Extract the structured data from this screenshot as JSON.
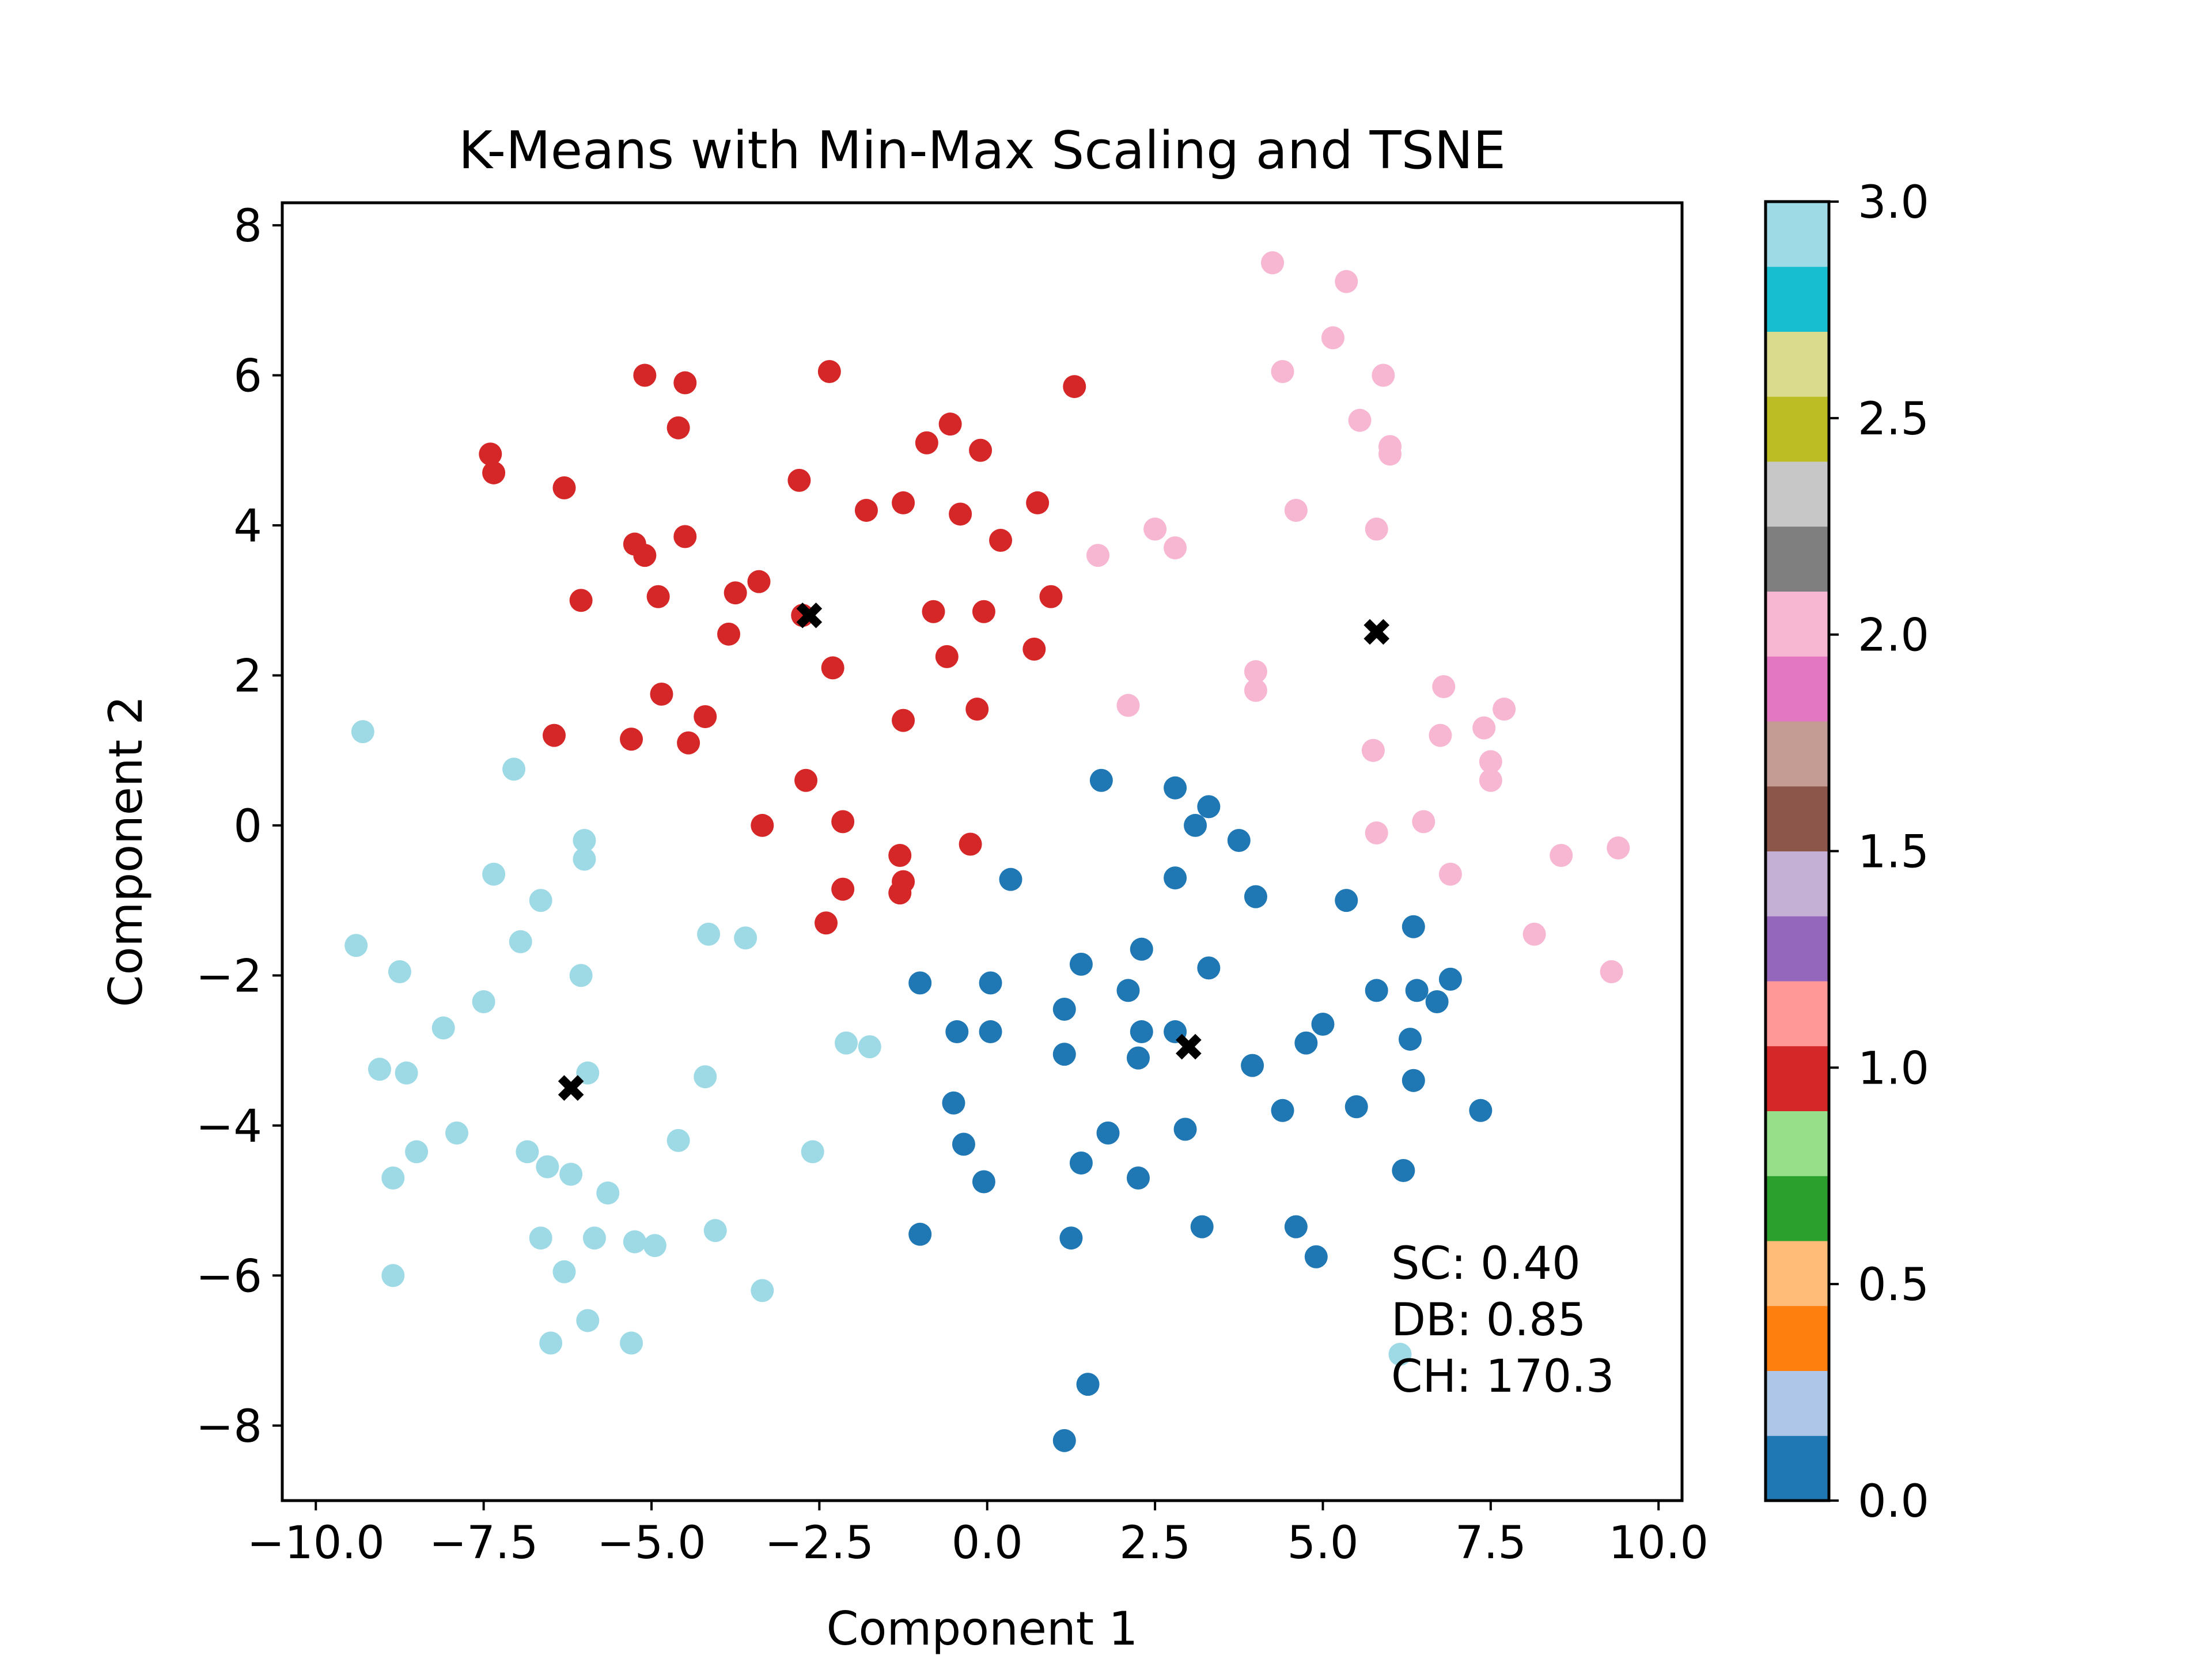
{
  "chart_data": {
    "type": "scatter",
    "title": "K-Means with Min-Max Scaling and TSNE",
    "xlabel": "Component 1",
    "ylabel": "Component 2",
    "xlim": [
      -10.5,
      10.35
    ],
    "ylim": [
      -9.0,
      8.3
    ],
    "xticks": [
      -10.0,
      -7.5,
      -5.0,
      -2.5,
      0.0,
      2.5,
      5.0,
      7.5,
      10.0
    ],
    "xtick_labels": [
      "−10.0",
      "−7.5",
      "−5.0",
      "−2.5",
      "0.0",
      "2.5",
      "5.0",
      "7.5",
      "10.0"
    ],
    "yticks": [
      -8,
      -6,
      -4,
      -2,
      0,
      2,
      4,
      6,
      8
    ],
    "ytick_labels": [
      "−8",
      "−6",
      "−4",
      "−2",
      "0",
      "2",
      "4",
      "6",
      "8"
    ],
    "grid": false,
    "colormap": "tab20",
    "cluster_colors": [
      "#1f77b4",
      "#d62728",
      "#f7b6d2",
      "#9edae5"
    ],
    "colorbar": {
      "range": [
        0.0,
        3.0
      ],
      "ticks": [
        0.0,
        0.5,
        1.0,
        1.5,
        2.0,
        2.5,
        3.0
      ],
      "tick_labels": [
        "0.0",
        "0.5",
        "1.0",
        "1.5",
        "2.0",
        "2.5",
        "3.0"
      ],
      "bands": [
        "#1f77b4",
        "#aec7e8",
        "#ff7f0e",
        "#ffbb78",
        "#2ca02c",
        "#98df8a",
        "#d62728",
        "#ff9896",
        "#9467bd",
        "#c5b0d5",
        "#8c564b",
        "#c49c94",
        "#e377c2",
        "#f7b6d2",
        "#7f7f7f",
        "#c7c7c7",
        "#bcbd22",
        "#dbdb8d",
        "#17becf",
        "#9edae5"
      ]
    },
    "annotation_lines": [
      "SC: 0.40",
      "DB: 0.85",
      "CH: 170.3"
    ],
    "centroids": [
      {
        "cluster": 0,
        "x": 3.0,
        "y": -2.95
      },
      {
        "cluster": 1,
        "x": -2.65,
        "y": 2.8
      },
      {
        "cluster": 2,
        "x": 5.8,
        "y": 2.58
      },
      {
        "cluster": 3,
        "x": -6.2,
        "y": -3.5
      }
    ],
    "series": [
      {
        "cluster": 0,
        "color": "#1f77b4",
        "points": [
          [
            1.7,
            0.6
          ],
          [
            2.8,
            0.5
          ],
          [
            3.3,
            0.25
          ],
          [
            3.1,
            0.0
          ],
          [
            3.75,
            -0.2
          ],
          [
            4.0,
            -0.95
          ],
          [
            2.8,
            -0.7
          ],
          [
            0.35,
            -0.72
          ],
          [
            5.35,
            -1.0
          ],
          [
            6.35,
            -1.35
          ],
          [
            1.4,
            -1.85
          ],
          [
            2.3,
            -1.65
          ],
          [
            3.3,
            -1.9
          ],
          [
            -1.0,
            -2.1
          ],
          [
            0.05,
            -2.1
          ],
          [
            2.1,
            -2.2
          ],
          [
            5.8,
            -2.2
          ],
          [
            6.4,
            -2.2
          ],
          [
            6.9,
            -2.05
          ],
          [
            6.7,
            -2.35
          ],
          [
            1.15,
            -2.45
          ],
          [
            -0.45,
            -2.75
          ],
          [
            0.05,
            -2.75
          ],
          [
            2.3,
            -2.75
          ],
          [
            2.8,
            -2.75
          ],
          [
            5.0,
            -2.65
          ],
          [
            4.75,
            -2.9
          ],
          [
            6.3,
            -2.85
          ],
          [
            1.15,
            -3.05
          ],
          [
            2.25,
            -3.1
          ],
          [
            3.95,
            -3.2
          ],
          [
            6.35,
            -3.4
          ],
          [
            -0.5,
            -3.7
          ],
          [
            4.4,
            -3.8
          ],
          [
            5.5,
            -3.75
          ],
          [
            7.35,
            -3.8
          ],
          [
            1.8,
            -4.1
          ],
          [
            2.95,
            -4.05
          ],
          [
            -0.35,
            -4.25
          ],
          [
            1.4,
            -4.5
          ],
          [
            -0.05,
            -4.75
          ],
          [
            2.25,
            -4.7
          ],
          [
            6.2,
            -4.6
          ],
          [
            -1.0,
            -5.45
          ],
          [
            1.25,
            -5.5
          ],
          [
            3.2,
            -5.35
          ],
          [
            4.6,
            -5.35
          ],
          [
            4.9,
            -5.75
          ],
          [
            1.5,
            -7.45
          ],
          [
            1.15,
            -8.2
          ]
        ]
      },
      {
        "cluster": 1,
        "color": "#d62728",
        "points": [
          [
            -5.1,
            6.0
          ],
          [
            -4.5,
            5.9
          ],
          [
            -2.35,
            6.05
          ],
          [
            1.3,
            5.85
          ],
          [
            -4.6,
            5.3
          ],
          [
            -0.55,
            5.35
          ],
          [
            -0.9,
            5.1
          ],
          [
            -0.1,
            5.0
          ],
          [
            -7.4,
            4.95
          ],
          [
            -7.35,
            4.7
          ],
          [
            -2.8,
            4.6
          ],
          [
            -6.3,
            4.5
          ],
          [
            -1.8,
            4.2
          ],
          [
            -1.25,
            4.3
          ],
          [
            -0.4,
            4.15
          ],
          [
            0.75,
            4.3
          ],
          [
            -4.5,
            3.85
          ],
          [
            -5.25,
            3.75
          ],
          [
            -5.1,
            3.6
          ],
          [
            0.2,
            3.8
          ],
          [
            -3.4,
            3.25
          ],
          [
            -3.75,
            3.1
          ],
          [
            -4.9,
            3.05
          ],
          [
            -6.05,
            3.0
          ],
          [
            0.95,
            3.05
          ],
          [
            -2.75,
            2.8
          ],
          [
            -0.8,
            2.85
          ],
          [
            -0.05,
            2.85
          ],
          [
            -3.85,
            2.55
          ],
          [
            0.7,
            2.35
          ],
          [
            -0.6,
            2.25
          ],
          [
            -2.3,
            2.1
          ],
          [
            -4.85,
            1.75
          ],
          [
            -4.2,
            1.45
          ],
          [
            -1.25,
            1.4
          ],
          [
            -0.15,
            1.55
          ],
          [
            -6.45,
            1.2
          ],
          [
            -5.3,
            1.15
          ],
          [
            -4.45,
            1.1
          ],
          [
            -2.7,
            0.6
          ],
          [
            -3.35,
            0.0
          ],
          [
            -2.15,
            0.05
          ],
          [
            -0.25,
            -0.25
          ],
          [
            -1.3,
            -0.4
          ],
          [
            -1.25,
            -0.75
          ],
          [
            -1.3,
            -0.9
          ],
          [
            -2.15,
            -0.85
          ],
          [
            -2.4,
            -1.3
          ]
        ]
      },
      {
        "cluster": 2,
        "color": "#f7b6d2",
        "points": [
          [
            4.25,
            7.5
          ],
          [
            5.35,
            7.25
          ],
          [
            5.15,
            6.5
          ],
          [
            4.4,
            6.05
          ],
          [
            5.9,
            6.0
          ],
          [
            5.55,
            5.4
          ],
          [
            6.0,
            5.05
          ],
          [
            6.0,
            4.95
          ],
          [
            4.6,
            4.2
          ],
          [
            5.8,
            3.95
          ],
          [
            1.65,
            3.6
          ],
          [
            2.5,
            3.95
          ],
          [
            2.8,
            3.7
          ],
          [
            4.0,
            2.05
          ],
          [
            4.0,
            1.8
          ],
          [
            2.1,
            1.6
          ],
          [
            6.8,
            1.85
          ],
          [
            7.7,
            1.55
          ],
          [
            7.4,
            1.3
          ],
          [
            6.75,
            1.2
          ],
          [
            5.75,
            1.0
          ],
          [
            7.5,
            0.85
          ],
          [
            7.5,
            0.6
          ],
          [
            6.5,
            0.05
          ],
          [
            5.8,
            -0.1
          ],
          [
            6.9,
            -0.65
          ],
          [
            8.55,
            -0.4
          ],
          [
            9.4,
            -0.3
          ],
          [
            8.15,
            -1.45
          ],
          [
            9.3,
            -1.95
          ]
        ]
      },
      {
        "cluster": 3,
        "color": "#9edae5",
        "points": [
          [
            -9.3,
            1.25
          ],
          [
            -7.05,
            0.75
          ],
          [
            -6.0,
            -0.2
          ],
          [
            -6.0,
            -0.45
          ],
          [
            -7.35,
            -0.65
          ],
          [
            -6.65,
            -1.0
          ],
          [
            -4.15,
            -1.45
          ],
          [
            -3.6,
            -1.5
          ],
          [
            -6.95,
            -1.55
          ],
          [
            -9.4,
            -1.6
          ],
          [
            -8.75,
            -1.95
          ],
          [
            -6.05,
            -2.0
          ],
          [
            -7.5,
            -2.35
          ],
          [
            -8.1,
            -2.7
          ],
          [
            -2.1,
            -2.9
          ],
          [
            -1.75,
            -2.95
          ],
          [
            -9.05,
            -3.25
          ],
          [
            -8.65,
            -3.3
          ],
          [
            -5.95,
            -3.3
          ],
          [
            -4.2,
            -3.35
          ],
          [
            -7.9,
            -4.1
          ],
          [
            -4.6,
            -4.2
          ],
          [
            -8.5,
            -4.35
          ],
          [
            -6.85,
            -4.35
          ],
          [
            -2.6,
            -4.35
          ],
          [
            -6.55,
            -4.55
          ],
          [
            -6.2,
            -4.65
          ],
          [
            -8.85,
            -4.7
          ],
          [
            -5.65,
            -4.9
          ],
          [
            -6.65,
            -5.5
          ],
          [
            -5.85,
            -5.5
          ],
          [
            -5.25,
            -5.55
          ],
          [
            -4.95,
            -5.6
          ],
          [
            -4.05,
            -5.4
          ],
          [
            -6.3,
            -5.95
          ],
          [
            -8.85,
            -6.0
          ],
          [
            -3.35,
            -6.2
          ],
          [
            -5.95,
            -6.6
          ],
          [
            -6.5,
            -6.9
          ],
          [
            -5.3,
            -6.9
          ],
          [
            6.15,
            -7.05
          ]
        ]
      }
    ]
  }
}
